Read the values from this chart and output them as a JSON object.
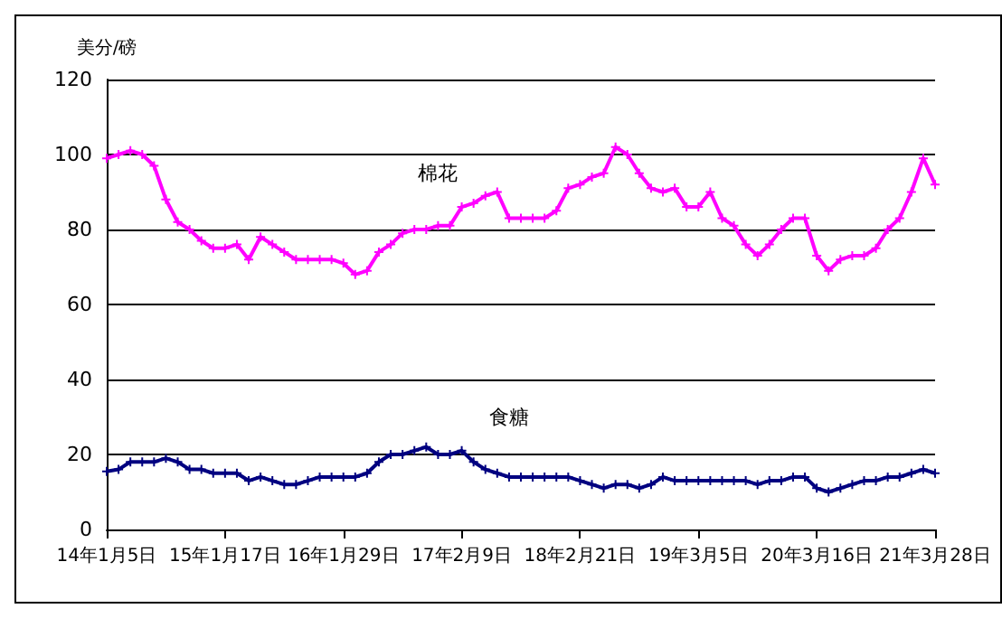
{
  "chart_data": {
    "type": "line",
    "ylabel": "美分/磅",
    "categories": [
      "14年1月5日",
      null,
      null,
      null,
      null,
      null,
      null,
      null,
      null,
      null,
      "15年1月17日",
      null,
      null,
      null,
      null,
      null,
      null,
      null,
      null,
      null,
      "16年1月29日",
      null,
      null,
      null,
      null,
      null,
      null,
      null,
      null,
      null,
      "17年2月9日",
      null,
      null,
      null,
      null,
      null,
      null,
      null,
      null,
      null,
      "18年2月21日",
      null,
      null,
      null,
      null,
      null,
      null,
      null,
      null,
      null,
      "19年3月5日",
      null,
      null,
      null,
      null,
      null,
      null,
      null,
      null,
      null,
      "20年3月16日",
      null,
      null,
      null,
      null,
      null,
      null,
      null,
      null,
      null,
      "21年3月28日"
    ],
    "series": [
      {
        "name": "棉花",
        "color": "#ff00ff",
        "values": [
          99,
          100,
          101,
          100,
          97,
          88,
          82,
          80,
          77,
          75,
          75,
          76,
          72,
          78,
          76,
          74,
          72,
          72,
          72,
          72,
          71,
          68,
          69,
          74,
          76,
          79,
          80,
          80,
          81,
          81,
          86,
          87,
          89,
          90,
          83,
          83,
          83,
          83,
          85,
          91,
          92,
          94,
          95,
          102,
          100,
          95,
          91,
          90,
          91,
          86,
          86,
          90,
          83,
          81,
          76,
          73,
          76,
          80,
          83,
          83,
          73,
          69,
          72,
          73,
          73,
          75,
          80,
          83,
          90,
          99,
          92
        ]
      },
      {
        "name": "食糖",
        "color": "#000080",
        "values": [
          15.5,
          16,
          18,
          18,
          18,
          19,
          18,
          16,
          16,
          15,
          15,
          15,
          13,
          14,
          13,
          12,
          12,
          13,
          14,
          14,
          14,
          14,
          15,
          18,
          20,
          20,
          21,
          22,
          20,
          20,
          21,
          18,
          16,
          15,
          14,
          14,
          14,
          14,
          14,
          14,
          13,
          12,
          11,
          12,
          12,
          11,
          12,
          14,
          13,
          13,
          13,
          13,
          13,
          13,
          13,
          12,
          13,
          13,
          14,
          14,
          11,
          10,
          11,
          12,
          13,
          13,
          14,
          14,
          15,
          16,
          15
        ]
      }
    ],
    "ylim": [
      0,
      120
    ],
    "yticks": [
      0,
      20,
      40,
      60,
      80,
      100,
      120
    ],
    "grid": "y",
    "legend": false,
    "marker": "cross",
    "line_style": "solid"
  }
}
